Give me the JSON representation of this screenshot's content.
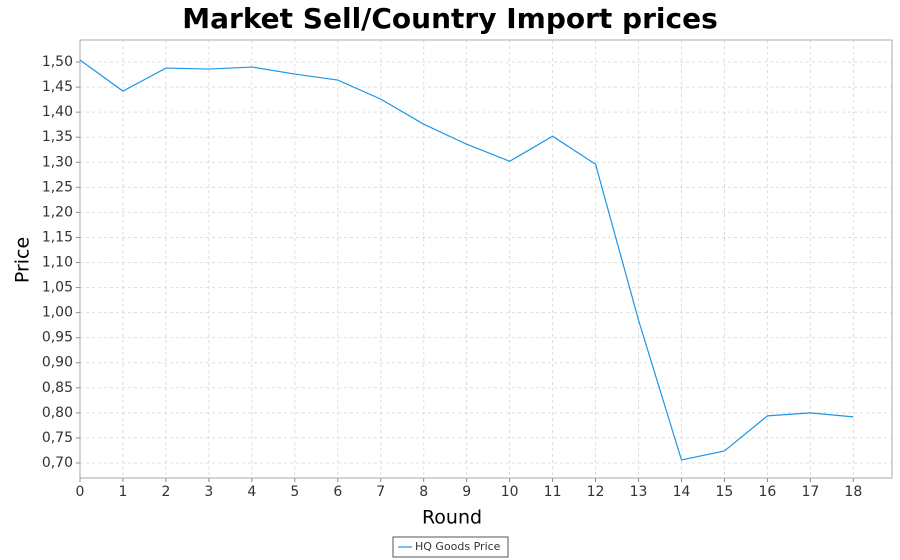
{
  "chart_data": {
    "type": "line",
    "title": "Market Sell/Country Import prices",
    "x_label": "Round",
    "y_label": "Price",
    "x": [
      0,
      1,
      2,
      3,
      4,
      5,
      6,
      7,
      8,
      9,
      10,
      11,
      12,
      13,
      14,
      15,
      16,
      17,
      18
    ],
    "series": [
      {
        "name": "HQ Goods Price",
        "color": "#1e96e6",
        "values": [
          1.504,
          1.442,
          1.488,
          1.486,
          1.49,
          1.476,
          1.464,
          1.426,
          1.376,
          1.336,
          1.302,
          1.352,
          1.296,
          0.985,
          0.706,
          0.724,
          0.794,
          0.8,
          0.792
        ]
      }
    ],
    "xlim": [
      0,
      18.9
    ],
    "ylim": [
      0.67,
      1.544
    ],
    "xticks": [
      0,
      1,
      2,
      3,
      4,
      5,
      6,
      7,
      8,
      9,
      10,
      11,
      12,
      13,
      14,
      15,
      16,
      17,
      18
    ],
    "yticks": [
      {
        "value": 0.7,
        "label": "0,70"
      },
      {
        "value": 0.75,
        "label": "0,75"
      },
      {
        "value": 0.8,
        "label": "0,80"
      },
      {
        "value": 0.85,
        "label": "0,85"
      },
      {
        "value": 0.9,
        "label": "0,90"
      },
      {
        "value": 0.95,
        "label": "0,95"
      },
      {
        "value": 1.0,
        "label": "1,00"
      },
      {
        "value": 1.05,
        "label": "1,05"
      },
      {
        "value": 1.1,
        "label": "1,10"
      },
      {
        "value": 1.15,
        "label": "1,15"
      },
      {
        "value": 1.2,
        "label": "1,20"
      },
      {
        "value": 1.25,
        "label": "1,25"
      },
      {
        "value": 1.3,
        "label": "1,30"
      },
      {
        "value": 1.35,
        "label": "1,35"
      },
      {
        "value": 1.4,
        "label": "1,40"
      },
      {
        "value": 1.45,
        "label": "1,45"
      },
      {
        "value": 1.5,
        "label": "1,50"
      }
    ],
    "grid": true,
    "legend": "bottom"
  }
}
